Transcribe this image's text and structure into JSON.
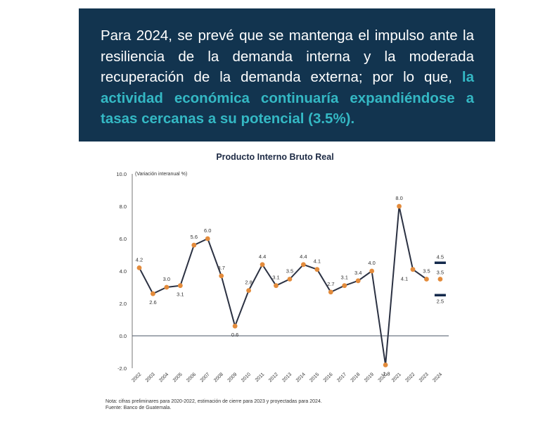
{
  "banner": {
    "text_plain": "Para 2024, se prevé que se mantenga el impulso ante la resiliencia de la demanda interna y la moderada recuperación de la demanda externa; por lo que, ",
    "text_highlight": "la actividad económica continuaría expandiéndose a tasas cercanas a su potencial (3.5%).",
    "background_color": "#12344f",
    "highlight_color": "#34b8c4"
  },
  "chart_data": {
    "type": "line",
    "title": "Producto Interno Bruto Real",
    "ylabel": "(Variación interanual %)",
    "xlabel": "",
    "ylim": [
      -2.0,
      10.0
    ],
    "yticks": [
      "10.0",
      "8.0",
      "6.0",
      "4.0",
      "2.0",
      "0.0",
      "-2.0"
    ],
    "categories": [
      "2002",
      "2003",
      "2004",
      "2005",
      "2006",
      "2007",
      "2008",
      "2009",
      "2010",
      "2011",
      "2012",
      "2013",
      "2014",
      "2015",
      "2016",
      "2017",
      "2018",
      "2019",
      "2020",
      "2021",
      "2022",
      "2023",
      "2024"
    ],
    "series": [
      {
        "values": [
          4.2,
          2.6,
          3.0,
          3.1,
          5.6,
          6.0,
          3.7,
          0.6,
          2.8,
          4.4,
          3.1,
          3.5,
          4.4,
          4.1,
          2.7,
          3.1,
          3.4,
          4.0,
          -1.8,
          8.0,
          4.1,
          3.5,
          3.5
        ],
        "labels": [
          "4.2",
          "2.6",
          "3.0",
          "3.1",
          "5.6",
          "6.0",
          "3.7",
          "0.6",
          "2.8",
          "4.4",
          "3.1",
          "3.5",
          "4.4",
          "4.1",
          "2.7",
          "3.1",
          "3.4",
          "4.0",
          "-1.8",
          "8.0",
          "4.1",
          "3.5",
          "3.5"
        ],
        "line_color": "#2b3142",
        "marker_color": "#e38b3b"
      }
    ],
    "range_2024": {
      "upper": 4.5,
      "lower": 2.5,
      "upper_label": "4.5",
      "lower_label": "2.5",
      "color": "#13294b"
    },
    "grid": false
  },
  "footer": {
    "note": "Nota: cifras preliminares para 2020-2022, estimación de cierre para 2023 y proyectadas para 2024.",
    "source": "Fuente: Banco de Guatemala."
  }
}
